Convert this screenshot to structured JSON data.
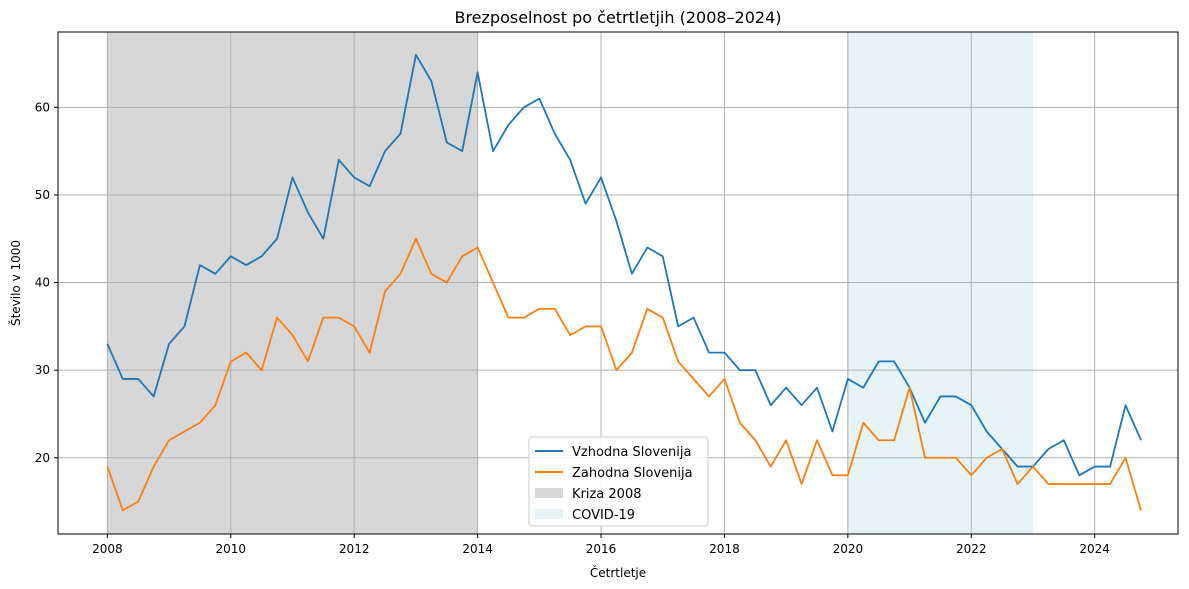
{
  "chart_data": {
    "type": "line",
    "title": "Brezposelnost po četrtletjih (2008–2024)",
    "xlabel": "Četrtletje",
    "ylabel": "Število v 1000",
    "xlim": [
      2007.2,
      2025.35
    ],
    "ylim": [
      11.3,
      68.6
    ],
    "xticks": [
      2008,
      2010,
      2012,
      2014,
      2016,
      2018,
      2020,
      2022,
      2024
    ],
    "xtick_labels": [
      "2008",
      "2010",
      "2012",
      "2014",
      "2016",
      "2018",
      "2020",
      "2022",
      "2024"
    ],
    "yticks": [
      20,
      30,
      40,
      50,
      60
    ],
    "ytick_labels": [
      "20",
      "30",
      "40",
      "50",
      "60"
    ],
    "grid": true,
    "legend_position": "bottom-center",
    "x": [
      2008.0,
      2008.25,
      2008.5,
      2008.75,
      2009.0,
      2009.25,
      2009.5,
      2009.75,
      2010.0,
      2010.25,
      2010.5,
      2010.75,
      2011.0,
      2011.25,
      2011.5,
      2011.75,
      2012.0,
      2012.25,
      2012.5,
      2012.75,
      2013.0,
      2013.25,
      2013.5,
      2013.75,
      2014.0,
      2014.25,
      2014.5,
      2014.75,
      2015.0,
      2015.25,
      2015.5,
      2015.75,
      2016.0,
      2016.25,
      2016.5,
      2016.75,
      2017.0,
      2017.25,
      2017.5,
      2017.75,
      2018.0,
      2018.25,
      2018.5,
      2018.75,
      2019.0,
      2019.25,
      2019.5,
      2019.75,
      2020.0,
      2020.25,
      2020.5,
      2020.75,
      2021.0,
      2021.25,
      2021.5,
      2021.75,
      2022.0,
      2022.25,
      2022.5,
      2022.75,
      2023.0,
      2023.25,
      2023.5,
      2023.75,
      2024.0,
      2024.25,
      2024.5,
      2024.75
    ],
    "series": [
      {
        "name": "Vzhodna Slovenija",
        "color": "#1f77b4",
        "values": [
          33,
          29,
          29,
          27,
          33,
          35,
          42,
          41,
          43,
          42,
          43,
          45,
          52,
          48,
          45,
          54,
          52,
          51,
          55,
          57,
          66,
          63,
          56,
          55,
          64,
          55,
          58,
          60,
          61,
          57,
          54,
          49,
          52,
          47,
          41,
          44,
          43,
          35,
          36,
          32,
          32,
          30,
          30,
          26,
          28,
          26,
          28,
          23,
          29,
          28,
          31,
          31,
          28,
          24,
          27,
          27,
          26,
          23,
          21,
          19,
          19,
          21,
          22,
          18,
          19,
          19,
          26,
          22
        ]
      },
      {
        "name": "Zahodna Slovenija",
        "color": "#ff7f0e",
        "values": [
          19,
          14,
          15,
          19,
          22,
          23,
          24,
          26,
          31,
          32,
          30,
          36,
          34,
          31,
          36,
          36,
          35,
          32,
          39,
          41,
          45,
          41,
          40,
          43,
          44,
          40,
          36,
          36,
          37,
          37,
          34,
          35,
          35,
          30,
          32,
          37,
          36,
          31,
          29,
          27,
          29,
          24,
          22,
          19,
          22,
          17,
          22,
          18,
          18,
          24,
          22,
          22,
          28,
          20,
          20,
          20,
          18,
          20,
          21,
          17,
          19,
          17,
          17,
          17,
          17,
          17,
          20,
          14
        ]
      }
    ],
    "spans": [
      {
        "name": "Kriza 2008",
        "x0": 2008.0,
        "x1": 2014.0,
        "color": "#d3d3d3",
        "opacity": 0.9
      },
      {
        "name": "COVID-19",
        "x0": 2020.0,
        "x1": 2023.0,
        "color": "#add8e6",
        "opacity": 0.3
      }
    ]
  }
}
